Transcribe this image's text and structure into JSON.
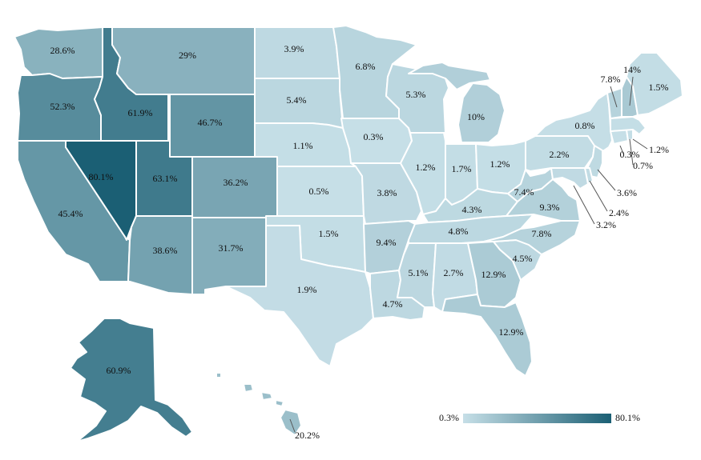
{
  "colors": {
    "low": "#c6dfe7",
    "high": "#1b5f74"
  },
  "scale": {
    "min": 0.3,
    "max": 80.1
  },
  "legend": {
    "min_label": "0.3%",
    "max_label": "80.1%"
  },
  "states": [
    {
      "id": "WA",
      "label": "28.6%",
      "value": 28.6
    },
    {
      "id": "OR",
      "label": "52.3%",
      "value": 52.3
    },
    {
      "id": "CA",
      "label": "45.4%",
      "value": 45.4
    },
    {
      "id": "NV",
      "label": "80.1%",
      "value": 80.1
    },
    {
      "id": "ID",
      "label": "61.9%",
      "value": 61.9
    },
    {
      "id": "MT",
      "label": "29%",
      "value": 29
    },
    {
      "id": "WY",
      "label": "46.7%",
      "value": 46.7
    },
    {
      "id": "UT",
      "label": "63.1%",
      "value": 63.1
    },
    {
      "id": "CO",
      "label": "36.2%",
      "value": 36.2
    },
    {
      "id": "AZ",
      "label": "38.6%",
      "value": 38.6
    },
    {
      "id": "NM",
      "label": "31.7%",
      "value": 31.7
    },
    {
      "id": "ND",
      "label": "3.9%",
      "value": 3.9
    },
    {
      "id": "SD",
      "label": "5.4%",
      "value": 5.4
    },
    {
      "id": "NE",
      "label": "1.1%",
      "value": 1.1
    },
    {
      "id": "KS",
      "label": "0.5%",
      "value": 0.5
    },
    {
      "id": "OK",
      "label": "1.5%",
      "value": 1.5
    },
    {
      "id": "TX",
      "label": "1.9%",
      "value": 1.9
    },
    {
      "id": "MN",
      "label": "6.8%",
      "value": 6.8
    },
    {
      "id": "IA",
      "label": "0.3%",
      "value": 0.3
    },
    {
      "id": "MO",
      "label": "3.8%",
      "value": 3.8
    },
    {
      "id": "AR",
      "label": "9.4%",
      "value": 9.4
    },
    {
      "id": "LA",
      "label": "4.7%",
      "value": 4.7
    },
    {
      "id": "WI",
      "label": "5.3%",
      "value": 5.3
    },
    {
      "id": "IL",
      "label": "1.2%",
      "value": 1.2
    },
    {
      "id": "MI",
      "label": "10%",
      "value": 10
    },
    {
      "id": "IN",
      "label": "1.7%",
      "value": 1.7
    },
    {
      "id": "OH",
      "label": "1.2%",
      "value": 1.2
    },
    {
      "id": "KY",
      "label": "4.3%",
      "value": 4.3
    },
    {
      "id": "TN",
      "label": "4.8%",
      "value": 4.8
    },
    {
      "id": "MS",
      "label": "5.1%",
      "value": 5.1
    },
    {
      "id": "AL",
      "label": "2.7%",
      "value": 2.7
    },
    {
      "id": "GA",
      "label": "12.9%",
      "value": 12.9
    },
    {
      "id": "FL",
      "label": "12.9%",
      "value": 12.9
    },
    {
      "id": "SC",
      "label": "4.5%",
      "value": 4.5
    },
    {
      "id": "NC",
      "label": "7.8%",
      "value": 7.8
    },
    {
      "id": "VA",
      "label": "9.3%",
      "value": 9.3
    },
    {
      "id": "WV",
      "label": "7.4%",
      "value": 7.4
    },
    {
      "id": "PA",
      "label": "2.2%",
      "value": 2.2
    },
    {
      "id": "NY",
      "label": "0.8%",
      "value": 0.8
    },
    {
      "id": "VT",
      "label": "7.8%",
      "value": 7.8
    },
    {
      "id": "NH",
      "label": "14%",
      "value": 14
    },
    {
      "id": "ME",
      "label": "1.5%",
      "value": 1.5
    },
    {
      "id": "MA",
      "label": "1.2%",
      "value": 1.2
    },
    {
      "id": "RI",
      "label": "0.7%",
      "value": 0.7
    },
    {
      "id": "CT",
      "label": "0.3%",
      "value": 0.3
    },
    {
      "id": "NJ",
      "label": "3.6%",
      "value": 3.6
    },
    {
      "id": "DE",
      "label": "2.4%",
      "value": 2.4
    },
    {
      "id": "MD",
      "label": "3.2%",
      "value": 3.2
    },
    {
      "id": "AK",
      "label": "60.9%",
      "value": 60.9
    },
    {
      "id": "HI",
      "label": "20.2%",
      "value": 20.2
    }
  ]
}
